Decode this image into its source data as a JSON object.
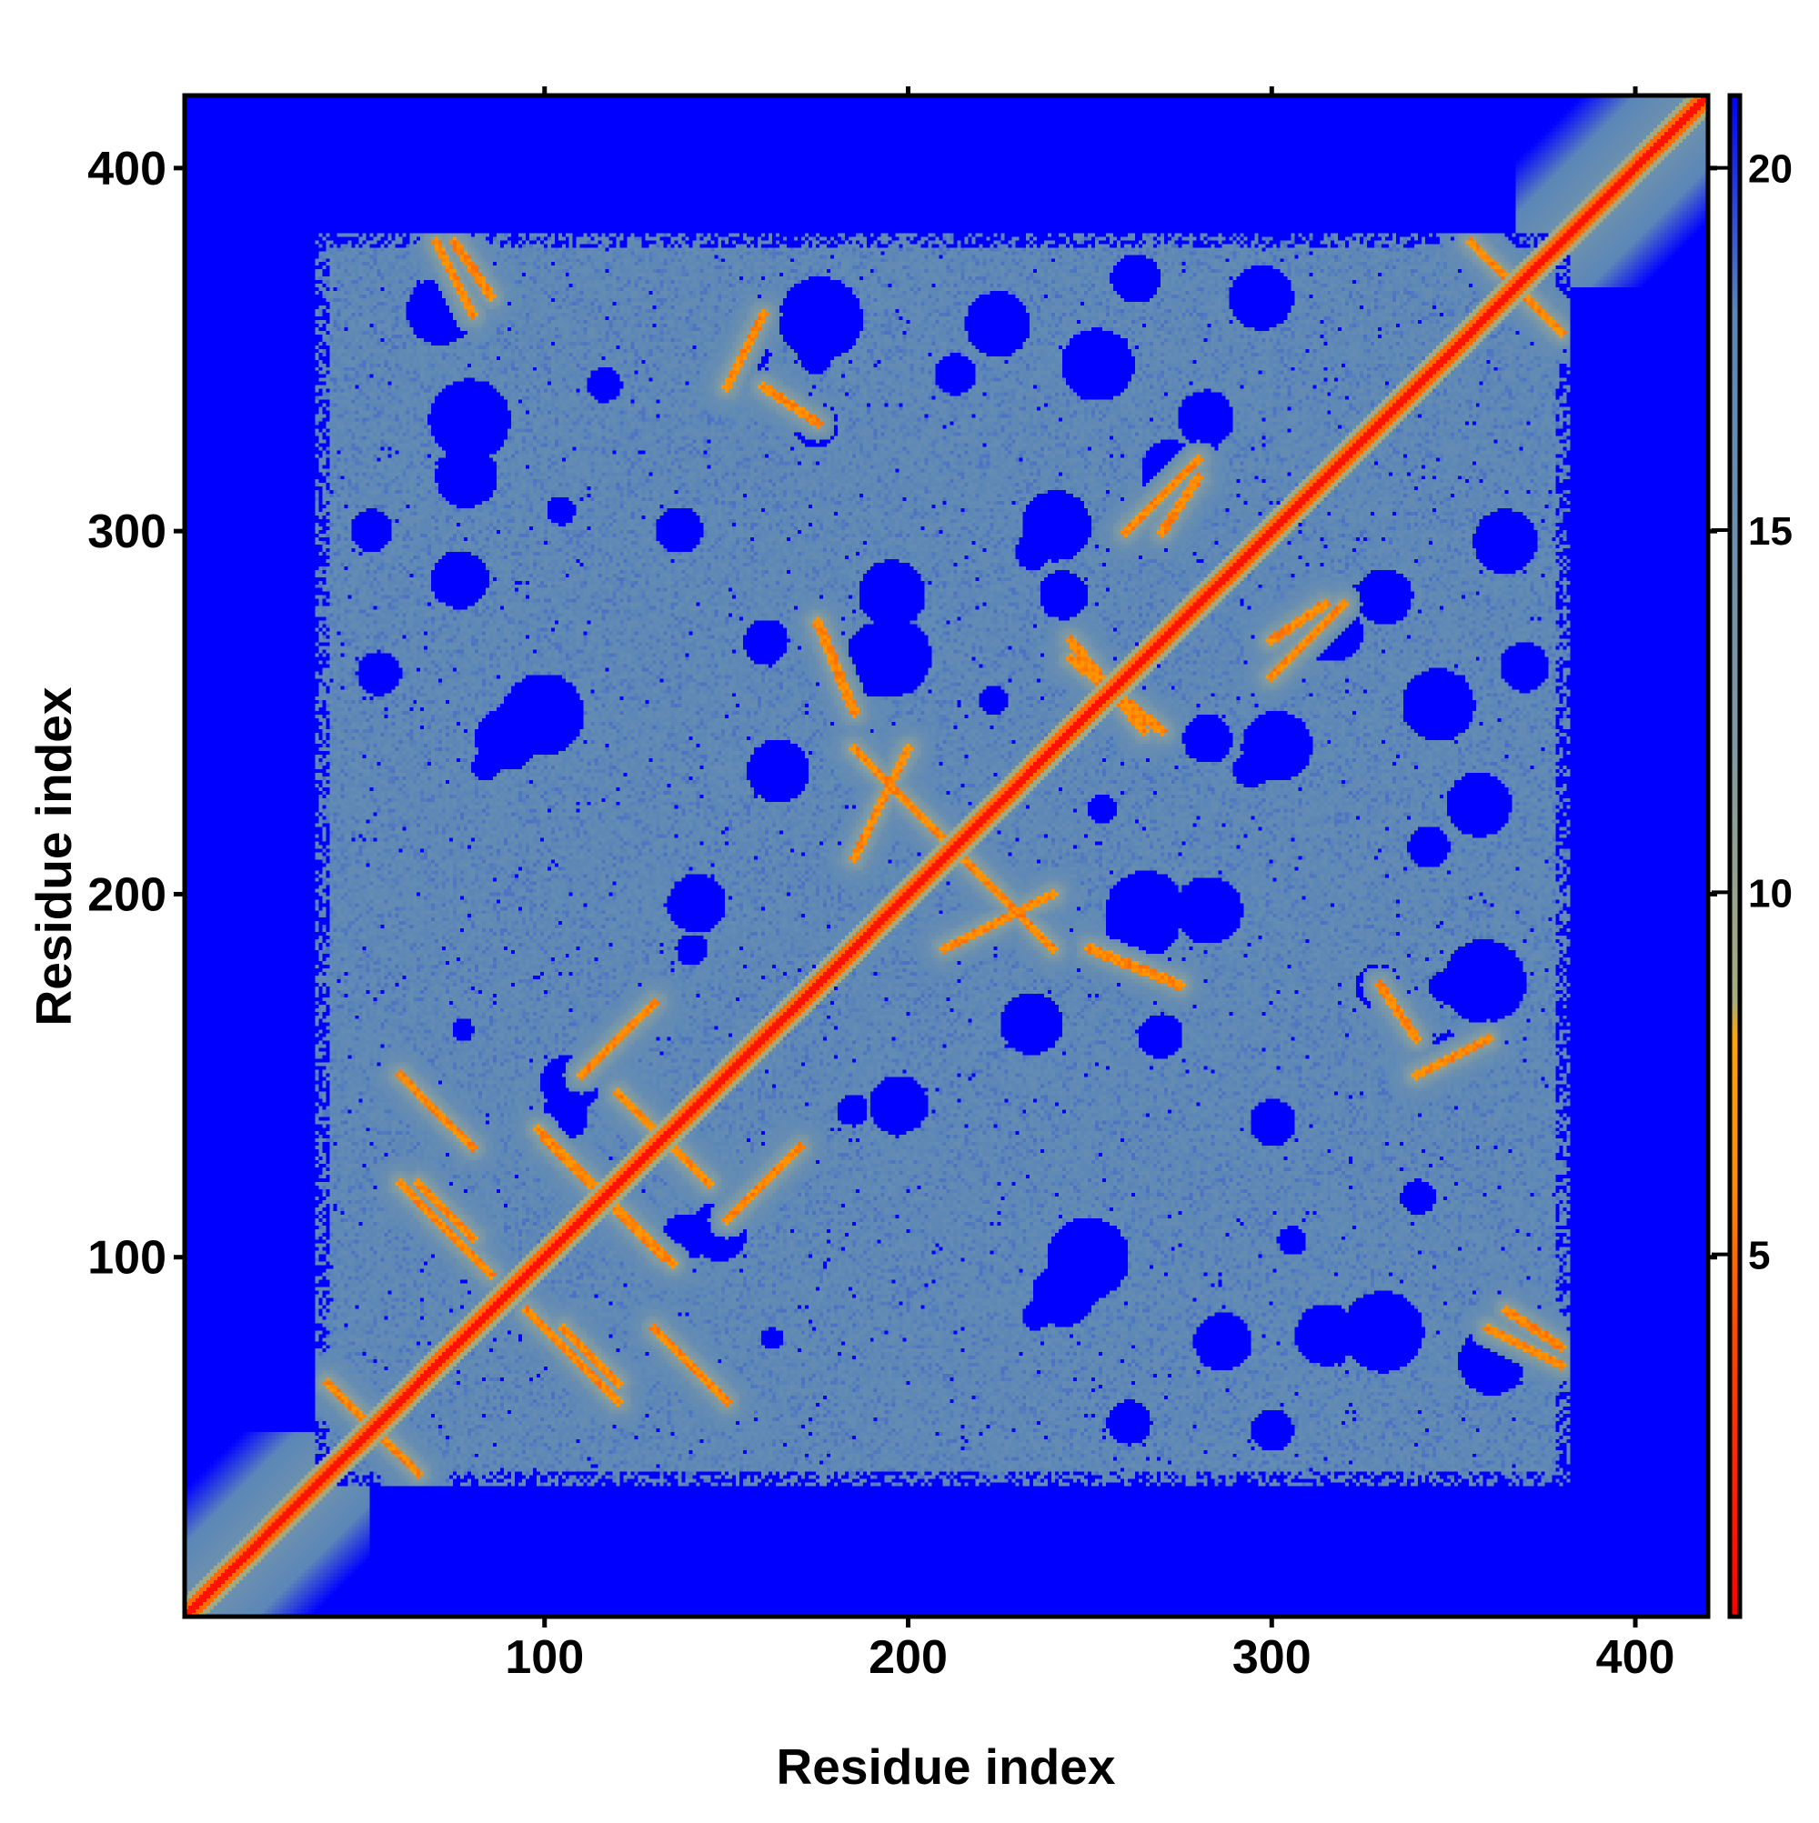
{
  "chart_data": {
    "type": "heatmap",
    "title": "",
    "xlabel": "Residue index",
    "ylabel": "Residue index",
    "n_residues": 420,
    "xlim": [
      1,
      420
    ],
    "ylim": [
      1,
      420
    ],
    "x_ticks": [
      100,
      200,
      300,
      400
    ],
    "y_ticks": [
      100,
      200,
      300,
      400
    ],
    "x_tick_labels": [
      "100",
      "200",
      "300",
      "400"
    ],
    "y_tick_labels": [
      "100",
      "200",
      "300",
      "400"
    ],
    "colorbar": {
      "range": [
        0,
        21
      ],
      "ticks": [
        5,
        10,
        15,
        20
      ],
      "tick_labels": [
        "5",
        "10",
        "15",
        "20"
      ],
      "stops": [
        {
          "value": 0,
          "color": "#ff0000"
        },
        {
          "value": 4,
          "color": "#ff4a00"
        },
        {
          "value": 6,
          "color": "#ff8c00"
        },
        {
          "value": 8,
          "color": "#ffa500"
        },
        {
          "value": 8.5,
          "color": "#a9ad7c"
        },
        {
          "value": 12,
          "color": "#7f9aa4"
        },
        {
          "value": 18,
          "color": "#5a86b8"
        },
        {
          "value": 21,
          "color": "#0000ff"
        }
      ]
    },
    "colors": {
      "far_background": "#0000ff",
      "mid_region": "#5a86b8",
      "near_contact": "#c8c888",
      "contact": "#ff8c00",
      "diagonal": "#ff0000"
    },
    "grid": false,
    "legend": "colorbar-right",
    "structure": {
      "folded_range": [
        37,
        382
      ],
      "diagonal_band_width": 2,
      "contact_segments": [
        {
          "from": [
            40,
            65
          ],
          "to": [
            60,
            45
          ],
          "kind": "antiparallel"
        },
        {
          "from": [
            60,
            120
          ],
          "to": [
            85,
            95
          ],
          "kind": "antiparallel"
        },
        {
          "from": [
            100,
            132
          ],
          "to": [
            135,
            98
          ],
          "kind": "antiparallel"
        },
        {
          "from": [
            105,
            80
          ],
          "to": [
            120,
            65
          ],
          "kind": "antiparallel"
        },
        {
          "from": [
            120,
            145
          ],
          "to": [
            145,
            120
          ],
          "kind": "antiparallel"
        },
        {
          "from": [
            110,
            150
          ],
          "to": [
            130,
            170
          ],
          "kind": "parallel"
        },
        {
          "from": [
            140,
            70
          ],
          "to": [
            150,
            60
          ],
          "kind": "antiparallel"
        },
        {
          "from": [
            70,
            140
          ],
          "to": [
            80,
            130
          ],
          "kind": "antiparallel"
        },
        {
          "from": [
            185,
            240
          ],
          "to": [
            210,
            215
          ],
          "kind": "antiparallel"
        },
        {
          "from": [
            210,
            185
          ],
          "to": [
            240,
            200
          ],
          "kind": "parallel"
        },
        {
          "from": [
            245,
            265
          ],
          "to": [
            270,
            245
          ],
          "kind": "antiparallel"
        },
        {
          "from": [
            250,
            185
          ],
          "to": [
            275,
            175
          ],
          "kind": "antiparallel"
        },
        {
          "from": [
            260,
            300
          ],
          "to": [
            280,
            320
          ],
          "kind": "parallel"
        },
        {
          "from": [
            300,
            270
          ],
          "to": [
            315,
            280
          ],
          "kind": "parallel"
        },
        {
          "from": [
            355,
            380
          ],
          "to": [
            380,
            355
          ],
          "kind": "antiparallel"
        },
        {
          "from": [
            75,
            380
          ],
          "to": [
            85,
            365
          ],
          "kind": "antiparallel"
        },
        {
          "from": [
            160,
            340
          ],
          "to": [
            175,
            330
          ],
          "kind": "antiparallel"
        },
        {
          "from": [
            340,
            150
          ],
          "to": [
            360,
            160
          ],
          "kind": "parallel"
        },
        {
          "from": [
            360,
            80
          ],
          "to": [
            380,
            70
          ],
          "kind": "antiparallel"
        }
      ]
    }
  }
}
